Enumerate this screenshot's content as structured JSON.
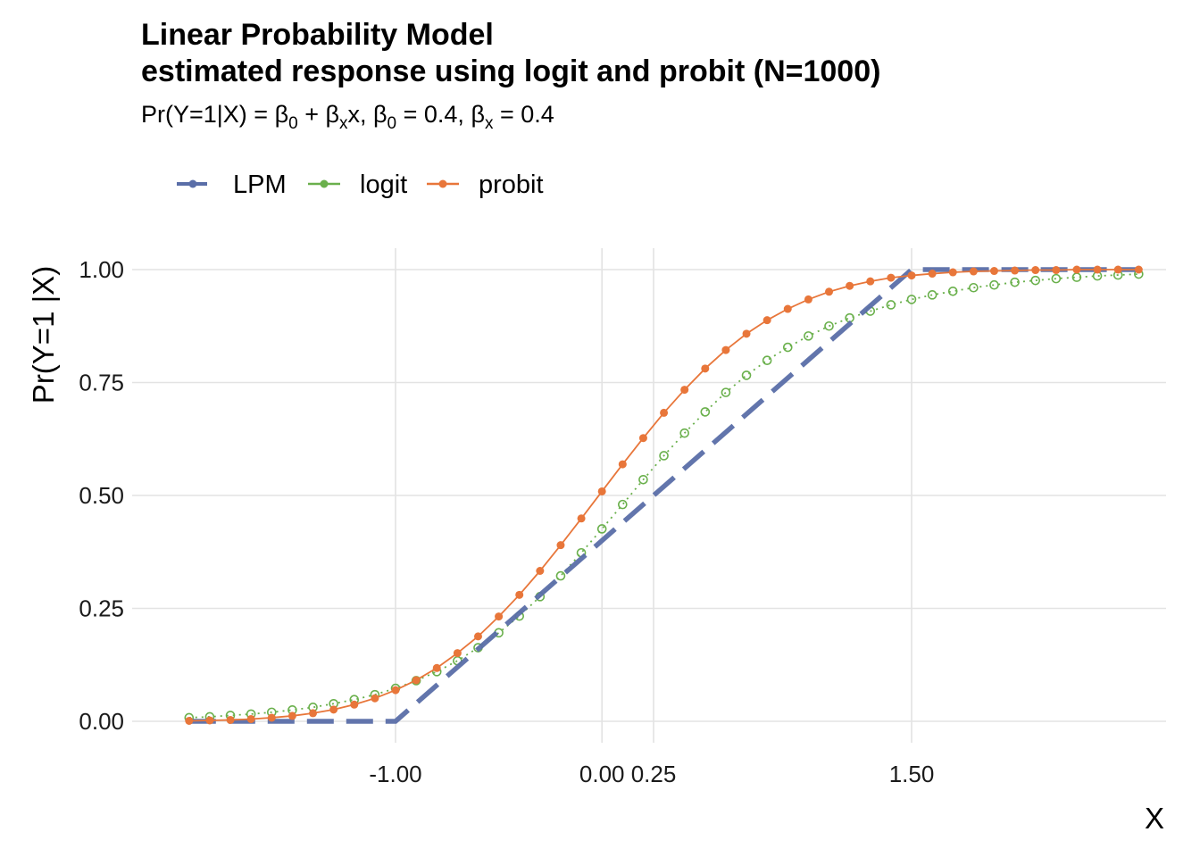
{
  "chart_data": {
    "type": "line",
    "title": "Linear Probability Model",
    "title_line2": "estimated response using logit and probit (N=1000)",
    "subtitle": {
      "p1": "Pr(Y=1|X) = ",
      "beta": "β",
      "sub0": "0",
      "plus": " + ",
      "subx": "x",
      "p2": "x, ",
      "p3": " = 0.4, ",
      "p4": " = 0.4"
    },
    "xlabel": "X",
    "ylabel": "Pr(Y=1 |X)",
    "x_ticks": [
      "-1.00",
      "0.00",
      "0.25",
      "1.50"
    ],
    "x_tick_values": [
      -1.0,
      0.0,
      0.25,
      1.5
    ],
    "y_ticks": [
      "0.00",
      "0.25",
      "0.50",
      "0.75",
      "1.00"
    ],
    "y_tick_values": [
      0.0,
      0.25,
      0.5,
      0.75,
      1.0
    ],
    "xlim": [
      -2.1,
      2.8
    ],
    "ylim": [
      -0.05,
      1.05
    ],
    "grid": true,
    "legend_position": "top-left",
    "x_points": [
      -2.0,
      -1.9,
      -1.8,
      -1.7,
      -1.6,
      -1.5,
      -1.4,
      -1.3,
      -1.2,
      -1.1,
      -1.0,
      -0.9,
      -0.8,
      -0.7,
      -0.6,
      -0.5,
      -0.4,
      -0.3,
      -0.2,
      -0.1,
      0.0,
      0.1,
      0.2,
      0.3,
      0.4,
      0.5,
      0.6,
      0.7,
      0.8,
      0.9,
      1.0,
      1.1,
      1.2,
      1.3,
      1.4,
      1.5,
      1.6,
      1.7,
      1.8,
      1.9,
      2.0,
      2.1,
      2.2,
      2.3,
      2.4,
      2.5,
      2.6
    ],
    "series": [
      {
        "name": "LPM",
        "color": "#5a6ea8",
        "style": "dashed",
        "points": [
          [
            -2.0,
            0.0
          ],
          [
            -1.0,
            0.0
          ],
          [
            1.5,
            1.0
          ],
          [
            2.6,
            1.0
          ]
        ]
      },
      {
        "name": "logit",
        "color": "#6ab04c",
        "style": "dotted",
        "values": [
          0.008,
          0.01,
          0.013,
          0.016,
          0.02,
          0.025,
          0.031,
          0.039,
          0.048,
          0.059,
          0.073,
          0.09,
          0.11,
          0.134,
          0.163,
          0.196,
          0.233,
          0.276,
          0.322,
          0.373,
          0.426,
          0.48,
          0.535,
          0.588,
          0.638,
          0.685,
          0.728,
          0.766,
          0.799,
          0.828,
          0.853,
          0.875,
          0.893,
          0.908,
          0.922,
          0.934,
          0.944,
          0.952,
          0.96,
          0.966,
          0.972,
          0.976,
          0.98,
          0.983,
          0.986,
          0.988,
          0.99
        ]
      },
      {
        "name": "probit",
        "color": "#e8763a",
        "style": "solid",
        "values": [
          0.001,
          0.002,
          0.003,
          0.005,
          0.008,
          0.012,
          0.018,
          0.026,
          0.037,
          0.051,
          0.069,
          0.091,
          0.118,
          0.151,
          0.188,
          0.232,
          0.28,
          0.333,
          0.39,
          0.449,
          0.509,
          0.569,
          0.627,
          0.683,
          0.734,
          0.781,
          0.822,
          0.858,
          0.888,
          0.913,
          0.934,
          0.951,
          0.964,
          0.974,
          0.982,
          0.987,
          0.991,
          0.994,
          0.996,
          0.997,
          0.998,
          0.999,
          0.999,
          1.0,
          1.0,
          1.0,
          1.0
        ]
      }
    ]
  }
}
